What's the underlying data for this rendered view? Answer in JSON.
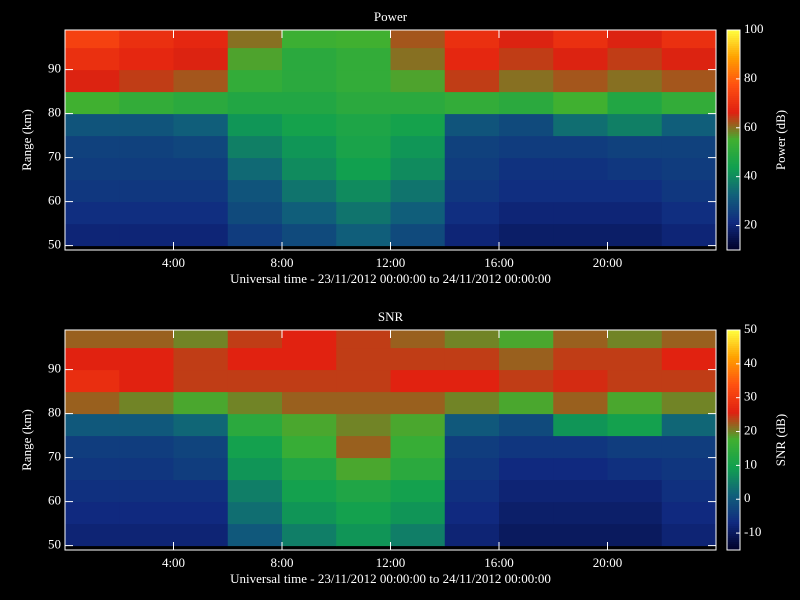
{
  "chart_data": [
    {
      "type": "heatmap",
      "title": "Power",
      "x_label": "Universal time - 23/11/2012 00:00:00 to 24/11/2012 00:00:00",
      "y_label": "Range (km)",
      "colorbar_label": "Power (dB)",
      "x": [
        1,
        3,
        5,
        7,
        9,
        11,
        13,
        15,
        17,
        19,
        21,
        23
      ],
      "y": [
        52.5,
        57.5,
        62.5,
        67.5,
        72.5,
        77.5,
        82.5,
        87.5,
        92.5,
        97.5
      ],
      "z": [
        [
          20,
          20,
          20,
          25,
          28,
          32,
          28,
          20,
          18,
          18,
          18,
          20
        ],
        [
          22,
          22,
          22,
          28,
          32,
          36,
          32,
          22,
          20,
          20,
          20,
          22
        ],
        [
          24,
          24,
          24,
          30,
          36,
          40,
          36,
          24,
          22,
          22,
          22,
          24
        ],
        [
          25,
          25,
          25,
          34,
          40,
          44,
          40,
          25,
          23,
          23,
          24,
          25
        ],
        [
          26,
          26,
          27,
          38,
          42,
          46,
          42,
          26,
          25,
          25,
          26,
          26
        ],
        [
          30,
          30,
          32,
          42,
          45,
          47,
          45,
          30,
          28,
          35,
          38,
          32
        ],
        [
          55,
          52,
          50,
          48,
          48,
          50,
          50,
          52,
          50,
          55,
          48,
          52
        ],
        [
          66,
          64,
          62,
          52,
          50,
          52,
          56,
          64,
          60,
          62,
          60,
          62
        ],
        [
          70,
          68,
          66,
          56,
          50,
          52,
          60,
          68,
          64,
          66,
          64,
          66
        ],
        [
          74,
          70,
          68,
          60,
          54,
          55,
          62,
          70,
          66,
          70,
          66,
          70
        ]
      ],
      "xlim": [
        0,
        24
      ],
      "xticks": [
        {
          "value": 4,
          "label": "4:00"
        },
        {
          "value": 8,
          "label": "8:00"
        },
        {
          "value": 12,
          "label": "12:00"
        },
        {
          "value": 16,
          "label": "16:00"
        },
        {
          "value": 20,
          "label": "20:00"
        }
      ],
      "ylim": [
        49,
        99
      ],
      "yticks": [
        50,
        60,
        70,
        80,
        90
      ],
      "zlim": [
        10,
        100
      ],
      "zticks": [
        20,
        40,
        60,
        80,
        100
      ],
      "colorscale": [
        "#000028",
        "#102a80",
        "#10607a",
        "#10a050",
        "#40b030",
        "#e02010",
        "#ff5010",
        "#ffa000",
        "#ffff40"
      ]
    },
    {
      "type": "heatmap",
      "title": "SNR",
      "x_label": "Universal time - 23/11/2012 00:00:00 to 24/11/2012 00:00:00",
      "y_label": "Range (km)",
      "colorbar_label": "SNR (dB)",
      "x": [
        1,
        3,
        5,
        7,
        9,
        11,
        13,
        15,
        17,
        19,
        21,
        23
      ],
      "y": [
        52.5,
        57.5,
        62.5,
        67.5,
        72.5,
        77.5,
        82.5,
        87.5,
        92.5,
        97.5
      ],
      "z": [
        [
          -8,
          -8,
          -8,
          0,
          5,
          8,
          5,
          -8,
          -10,
          -10,
          -10,
          -8
        ],
        [
          -7,
          -7,
          -7,
          3,
          8,
          10,
          8,
          -7,
          -9,
          -9,
          -9,
          -7
        ],
        [
          -6,
          -6,
          -6,
          5,
          10,
          12,
          10,
          -6,
          -8,
          -8,
          -8,
          -6
        ],
        [
          -5,
          -5,
          -4,
          8,
          12,
          18,
          14,
          -5,
          -7,
          -7,
          -6,
          -5
        ],
        [
          -4,
          -4,
          -3,
          10,
          16,
          22,
          16,
          -4,
          -5,
          -5,
          -4,
          -4
        ],
        [
          0,
          0,
          2,
          14,
          18,
          20,
          18,
          0,
          -2,
          8,
          10,
          2
        ],
        [
          22,
          20,
          18,
          20,
          22,
          22,
          22,
          20,
          18,
          22,
          18,
          20
        ],
        [
          28,
          26,
          24,
          24,
          24,
          24,
          26,
          26,
          24,
          25,
          24,
          24
        ],
        [
          26,
          26,
          24,
          26,
          26,
          24,
          24,
          24,
          22,
          24,
          24,
          26
        ],
        [
          22,
          22,
          20,
          24,
          26,
          24,
          22,
          20,
          18,
          22,
          20,
          22
        ]
      ],
      "xlim": [
        0,
        24
      ],
      "xticks": [
        {
          "value": 4,
          "label": "4:00"
        },
        {
          "value": 8,
          "label": "8:00"
        },
        {
          "value": 12,
          "label": "12:00"
        },
        {
          "value": 16,
          "label": "16:00"
        },
        {
          "value": 20,
          "label": "20:00"
        }
      ],
      "ylim": [
        49,
        99
      ],
      "yticks": [
        50,
        60,
        70,
        80,
        90
      ],
      "zlim": [
        -15,
        50
      ],
      "zticks": [
        -10,
        0,
        10,
        20,
        30,
        40,
        50
      ],
      "colorscale": [
        "#000028",
        "#102a80",
        "#10607a",
        "#10a050",
        "#40b030",
        "#e02010",
        "#ff5010",
        "#ffa000",
        "#ffff40"
      ]
    }
  ]
}
